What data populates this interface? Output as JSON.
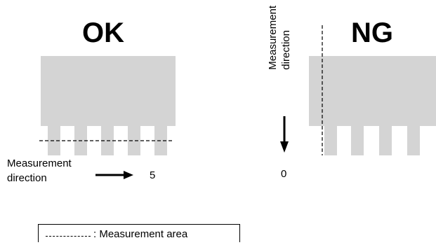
{
  "ok": {
    "title": "OK",
    "direction_label_line1": "Measurement",
    "direction_label_line2": "direction",
    "value": "5"
  },
  "ng": {
    "title": "NG",
    "direction_label_line1": "Measurement",
    "direction_label_line2": "direction",
    "value": "0"
  },
  "legend": {
    "text": ": Measurement area"
  },
  "colors": {
    "shape_fill": "#d4d4d4",
    "line": "#000000"
  }
}
